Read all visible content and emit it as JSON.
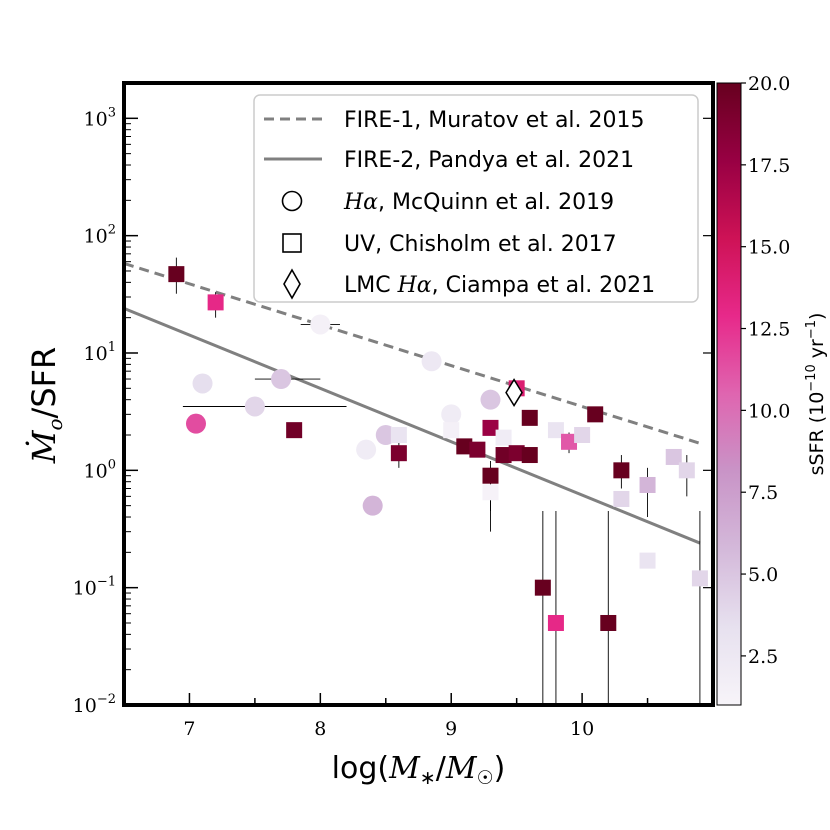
{
  "chart_data": {
    "type": "scatter",
    "yscale": "log",
    "xlabel": "log(M*/M☉)",
    "ylabel": "Ṁo/SFR",
    "xlim": [
      6.5,
      11.0
    ],
    "ylim": [
      0.01,
      2000
    ],
    "x_ticks": [
      7,
      8,
      9,
      10
    ],
    "x_tick_labels": [
      "7",
      "8",
      "9",
      "10"
    ],
    "y_ticks": [
      0.01,
      0.1,
      1,
      10,
      100,
      1000
    ],
    "y_tick_labels": [
      {
        "base": "10",
        "exp": "−2"
      },
      {
        "base": "10",
        "exp": "−1"
      },
      {
        "base": "10",
        "exp": "0"
      },
      {
        "base": "10",
        "exp": "1"
      },
      {
        "base": "10",
        "exp": "2"
      },
      {
        "base": "10",
        "exp": "3"
      }
    ],
    "colorbar": {
      "label": "sSFR (10^-10 yr^-1)",
      "label_main": "sSFR (10",
      "label_exp": "−10",
      "label_tail": "yr",
      "label_exp2": "−1",
      "label_close": ")",
      "min": 1.0,
      "max": 20.0,
      "ticks": [
        2.5,
        5.0,
        7.5,
        10.0,
        12.5,
        15.0,
        17.5,
        20.0
      ],
      "tick_labels": [
        "2.5",
        "5.0",
        "7.5",
        "10.0",
        "12.5",
        "15.0",
        "17.5",
        "20.0"
      ],
      "colors": [
        "#f7f4f9",
        "#e7e1ef",
        "#d4b9da",
        "#c994c7",
        "#df65b0",
        "#e7298a",
        "#ce1256",
        "#980043",
        "#67001f"
      ]
    },
    "legend": {
      "placement": "top-right",
      "entries": [
        {
          "marker": "dashed-line",
          "label": "FIRE-1, Muratov et al. 2015"
        },
        {
          "marker": "solid-line",
          "label": "FIRE-2, Pandya et al. 2021"
        },
        {
          "marker": "circle",
          "label_math": "Hα",
          "label": ", McQuinn et al. 2019"
        },
        {
          "marker": "square",
          "label": "UV, Chisholm et al. 2017"
        },
        {
          "marker": "diamond",
          "label_prefix": "LMC ",
          "label_math": "Hα",
          "label": ", Ciampa et al. 2021"
        }
      ]
    },
    "lines": [
      {
        "name": "FIRE-1, Muratov et al. 2015",
        "style": "dashed",
        "color": "#808080",
        "x": [
          6.5,
          10.9
        ],
        "y": [
          58,
          1.7
        ]
      },
      {
        "name": "FIRE-2, Pandya et al. 2021",
        "style": "solid",
        "color": "#808080",
        "x": [
          6.5,
          10.9
        ],
        "y": [
          24,
          0.24
        ]
      }
    ],
    "series": [
      {
        "name": "Hα, McQuinn et al. 2019",
        "marker": "circle",
        "points": [
          {
            "x": 7.05,
            "y": 2.5,
            "ssfr": 11.5
          },
          {
            "x": 7.1,
            "y": 5.5,
            "ssfr": 3.5
          },
          {
            "x": 7.5,
            "y": 3.5,
            "ssfr": 4.0,
            "xerr": [
              6.95,
              8.2
            ]
          },
          {
            "x": 7.7,
            "y": 6.0,
            "ssfr": 5.0,
            "xerr": [
              7.5,
              8.0
            ]
          },
          {
            "x": 8.0,
            "y": 17.5,
            "ssfr": 1.5,
            "xerr": [
              7.85,
              8.15
            ]
          },
          {
            "x": 8.35,
            "y": 1.5,
            "ssfr": 2.0
          },
          {
            "x": 8.4,
            "y": 0.5,
            "ssfr": 6.0
          },
          {
            "x": 8.5,
            "y": 2.0,
            "ssfr": 5.0
          },
          {
            "x": 8.85,
            "y": 8.5,
            "ssfr": 2.5
          },
          {
            "x": 9.0,
            "y": 3.0,
            "ssfr": 2.0
          },
          {
            "x": 9.3,
            "y": 4.0,
            "ssfr": 5.0
          }
        ]
      },
      {
        "name": "UV, Chisholm et al. 2017",
        "marker": "square",
        "points": [
          {
            "x": 6.9,
            "y": 47,
            "ssfr": 20.0,
            "yerr": [
              32,
              65
            ]
          },
          {
            "x": 7.2,
            "y": 27,
            "ssfr": 13.0,
            "yerr": [
              20,
              33
            ]
          },
          {
            "x": 7.8,
            "y": 2.2,
            "ssfr": 19.5
          },
          {
            "x": 8.6,
            "y": 1.4,
            "ssfr": 19.0,
            "yerr": [
              1.05,
              1.8
            ]
          },
          {
            "x": 8.6,
            "y": 2.0,
            "ssfr": 3.0
          },
          {
            "x": 9.0,
            "y": 2.2,
            "ssfr": 1.5
          },
          {
            "x": 9.1,
            "y": 1.6,
            "ssfr": 20.0
          },
          {
            "x": 9.2,
            "y": 1.5,
            "ssfr": 19.0
          },
          {
            "x": 9.3,
            "y": 2.3,
            "ssfr": 17.5
          },
          {
            "x": 9.3,
            "y": 0.9,
            "ssfr": 20.0,
            "yerr": [
              0.45,
              1.2
            ]
          },
          {
            "x": 9.3,
            "y": 0.65,
            "ssfr": 1.2,
            "yerr": [
              0.3,
              0.9
            ]
          },
          {
            "x": 9.4,
            "y": 1.9,
            "ssfr": 2.0
          },
          {
            "x": 9.4,
            "y": 1.35,
            "ssfr": 19.5
          },
          {
            "x": 9.5,
            "y": 1.4,
            "ssfr": 19.0
          },
          {
            "x": 9.5,
            "y": 5.0,
            "ssfr": 14.0
          },
          {
            "x": 9.6,
            "y": 2.8,
            "ssfr": 20.0
          },
          {
            "x": 9.6,
            "y": 1.35,
            "ssfr": 20.0
          },
          {
            "x": 9.7,
            "y": 0.1,
            "ssfr": 20.0,
            "yerr": [
              0.01,
              0.45
            ]
          },
          {
            "x": 9.8,
            "y": 0.05,
            "ssfr": 13.0,
            "yerr": [
              0.01,
              0.45
            ]
          },
          {
            "x": 9.8,
            "y": 2.2,
            "ssfr": 3.0
          },
          {
            "x": 9.9,
            "y": 1.75,
            "ssfr": 11.0,
            "yerr": [
              1.4,
              2.1
            ]
          },
          {
            "x": 10.0,
            "y": 2.0,
            "ssfr": 4.0
          },
          {
            "x": 10.1,
            "y": 3.0,
            "ssfr": 20.0
          },
          {
            "x": 10.2,
            "y": 0.05,
            "ssfr": 20.0,
            "yerr": [
              0.01,
              0.45
            ]
          },
          {
            "x": 10.3,
            "y": 1.0,
            "ssfr": 20.0,
            "yerr": [
              0.7,
              1.35
            ]
          },
          {
            "x": 10.3,
            "y": 0.57,
            "ssfr": 4.0
          },
          {
            "x": 10.5,
            "y": 0.75,
            "ssfr": 6.0,
            "yerr": [
              0.4,
              1.05
            ]
          },
          {
            "x": 10.5,
            "y": 0.17,
            "ssfr": 3.0
          },
          {
            "x": 10.7,
            "y": 1.3,
            "ssfr": 5.0
          },
          {
            "x": 10.8,
            "y": 1.0,
            "ssfr": 4.0,
            "yerr": [
              0.6,
              1.35
            ]
          },
          {
            "x": 10.9,
            "y": 0.12,
            "ssfr": 4.0,
            "yerr": [
              0.01,
              0.45
            ]
          }
        ]
      },
      {
        "name": "LMC Hα, Ciampa et al. 2021",
        "marker": "diamond",
        "points": [
          {
            "x": 9.48,
            "y": 4.6,
            "ssfr": 1.0
          }
        ]
      }
    ]
  }
}
